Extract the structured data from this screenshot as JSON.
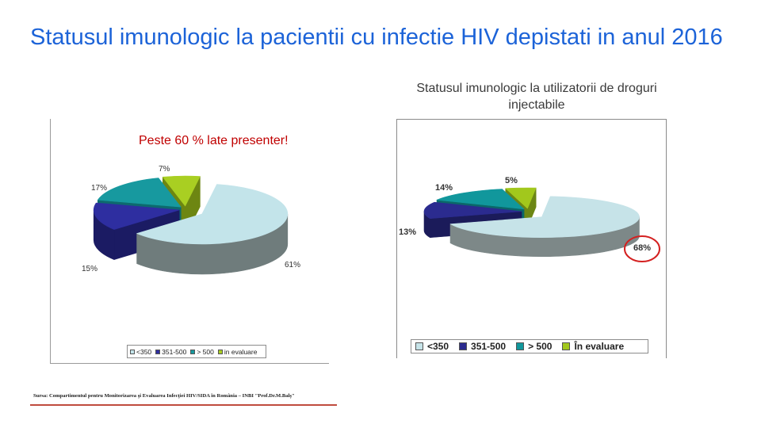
{
  "slide": {
    "title": "Statusul imunologic la pacientii cu infectie HIV depistati in anul 2016",
    "source": "Sursa: Compartimentul pentru Monitorizarea şi Evaluarea Infecţiei HIV/SIDA în România – INBI \"Prof.Dr.M.Balş\""
  },
  "chart_data": [
    {
      "type": "pie",
      "annotation": "Peste 60 % late presenter!",
      "categories": [
        "<350",
        "351-500",
        "> 500",
        "in evaluare"
      ],
      "values": [
        61,
        15,
        17,
        7
      ],
      "labels": [
        "61%",
        "15%",
        "17%",
        "7%"
      ],
      "colors": [
        {
          "top": "#c3e4ea",
          "side": "#6f7c7c"
        },
        {
          "top": "#2e2ea0",
          "side": "#1b1b63"
        },
        {
          "top": "#17999f",
          "side": "#0d6a6e"
        },
        {
          "top": "#a9cf22",
          "side": "#6d8612"
        }
      ]
    },
    {
      "type": "pie",
      "title": "Statusul imunologic la utilizatorii de droguri injectabile",
      "categories": [
        "<350",
        "351-500",
        "> 500",
        "În evaluare"
      ],
      "values": [
        68,
        13,
        14,
        5
      ],
      "labels": [
        "68%",
        "13%",
        "14%",
        "5%"
      ],
      "colors": [
        {
          "top": "#c6e3e8",
          "side": "#7d8888"
        },
        {
          "top": "#2b2b8f",
          "side": "#1b1b5a"
        },
        {
          "top": "#11979c",
          "side": "#0b6769"
        },
        {
          "top": "#a2c81c",
          "side": "#6c8614"
        }
      ]
    }
  ]
}
